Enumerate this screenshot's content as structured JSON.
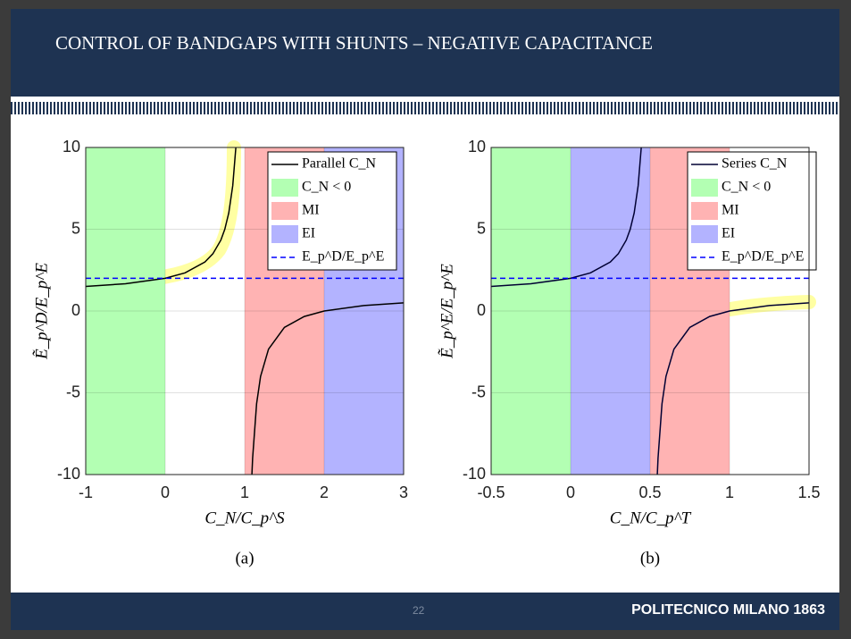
{
  "slide": {
    "title": "CONTROL OF BANDGAPS WITH SHUNTS – NEGATIVE CAPACITANCE",
    "page_number": 22,
    "brand": "POLITECNICO MILANO 1863"
  },
  "chart_data": [
    {
      "type": "line",
      "caption": "(a)",
      "xlabel": "C_N/C_p^S",
      "ylabel": "Ẽ_p^D/E_p^E",
      "xlim": [
        -1,
        3
      ],
      "ylim": [
        -10,
        10
      ],
      "xticks": [
        -1,
        0,
        1,
        2,
        3
      ],
      "yticks": [
        -10,
        -5,
        0,
        5,
        10
      ],
      "grid": true,
      "legend": "upper right",
      "regions": [
        {
          "name": "C_N < 0",
          "color": "#b3ffb3",
          "xrange": [
            -1,
            0
          ]
        },
        {
          "name": "MI",
          "color": "#ffb3b3",
          "xrange": [
            1,
            2
          ]
        },
        {
          "name": "EI",
          "color": "#b3b3ff",
          "xrange": [
            2,
            3
          ]
        }
      ],
      "series": [
        {
          "name": "Parallel C_N",
          "color": "#000000",
          "x": [
            -1,
            -0.5,
            0,
            0.25,
            0.5,
            0.6,
            0.7,
            0.75,
            0.8,
            0.85,
            0.889,
            1,
            1.091,
            1.1,
            1.15,
            1.2,
            1.3,
            1.5,
            1.75,
            2,
            2.5,
            3
          ],
          "values": [
            1.5,
            1.667,
            2,
            2.333,
            3,
            3.5,
            4.333,
            5,
            6,
            7.667,
            10,
            null,
            -10,
            -9,
            -5.667,
            -4,
            -2.333,
            -1,
            -0.333,
            0,
            0.333,
            0.5
          ]
        },
        {
          "name": "E_p^D/E_p^E",
          "color": "#0000ff",
          "dashed": true,
          "x": [
            -1,
            3
          ],
          "values": [
            2,
            2
          ]
        }
      ]
    },
    {
      "type": "line",
      "caption": "(b)",
      "xlabel": "C_N/C_p^T",
      "ylabel": "Ẽ_p^E/E_p^E",
      "xlim": [
        -0.5,
        1.5
      ],
      "ylim": [
        -10,
        10
      ],
      "xticks": [
        -0.5,
        0,
        0.5,
        1,
        1.5
      ],
      "yticks": [
        -10,
        -5,
        0,
        5,
        10
      ],
      "grid": true,
      "legend": "upper right",
      "regions": [
        {
          "name": "C_N < 0",
          "color": "#b3ffb3",
          "xrange": [
            -0.5,
            0
          ]
        },
        {
          "name": "MI",
          "color": "#ffb3b3",
          "xrange": [
            0.5,
            1
          ]
        },
        {
          "name": "EI",
          "color": "#b3b3ff",
          "xrange": [
            0,
            0.5
          ]
        }
      ],
      "series": [
        {
          "name": "Series C_N",
          "color": "#000033",
          "x": [
            -0.5,
            -0.25,
            0,
            0.125,
            0.25,
            0.3,
            0.35,
            0.375,
            0.4,
            0.425,
            0.4445,
            0.5,
            0.5455,
            0.55,
            0.575,
            0.6,
            0.65,
            0.75,
            0.875,
            1,
            1.25,
            1.5
          ],
          "values": [
            1.5,
            1.667,
            2,
            2.333,
            3,
            3.5,
            4.333,
            5,
            6,
            7.667,
            10,
            null,
            -10,
            -9,
            -5.667,
            -4,
            -2.333,
            -1,
            -0.333,
            0,
            0.333,
            0.5
          ]
        },
        {
          "name": "E_p^D/E_p^E",
          "color": "#0000ff",
          "dashed": true,
          "x": [
            -0.5,
            1.5
          ],
          "values": [
            2,
            2
          ]
        }
      ]
    }
  ]
}
